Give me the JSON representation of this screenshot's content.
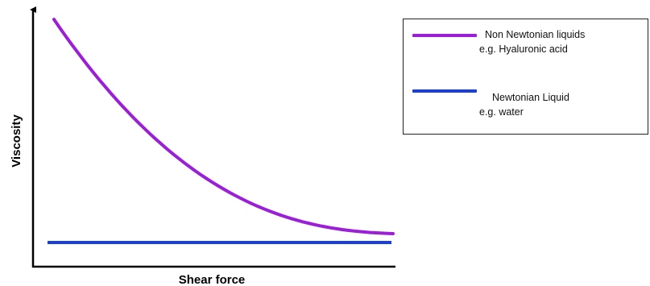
{
  "chart_data": {
    "type": "line",
    "title": "",
    "xlabel": "Shear force",
    "ylabel": "Viscosity",
    "grid": false,
    "legend_position": "top-right",
    "series": [
      {
        "name": "Non Newtonian liquids",
        "example": "e.g. Hyaluronic acid",
        "color": "#9b1fd6",
        "shape": "decreasing-decay"
      },
      {
        "name": "Newtonian Liquid",
        "example": "e.g. water",
        "color": "#1a3fe0",
        "shape": "constant"
      }
    ]
  }
}
